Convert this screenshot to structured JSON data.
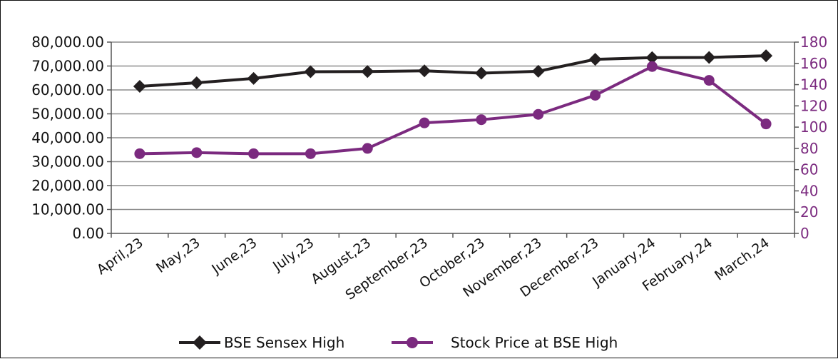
{
  "chart_data": {
    "type": "line",
    "title": "",
    "xlabel": "",
    "ylabel": "",
    "y2label": "",
    "categories": [
      "April,23",
      "May,23",
      "June,23",
      "July,23",
      "August,23",
      "September,23",
      "October,23",
      "November,23",
      "December,23",
      "January,24",
      "February,24",
      "March,24"
    ],
    "ylim": [
      0,
      80000
    ],
    "y_ticks": [
      "0.00",
      "10,000.00",
      "20,000.00",
      "30,000.00",
      "40,000.00",
      "50,000.00",
      "60,000.00",
      "70,000.00",
      "80,000.00"
    ],
    "y2lim": [
      0,
      180
    ],
    "y2_ticks": [
      "0",
      "20",
      "40",
      "60",
      "80",
      "100",
      "120",
      "140",
      "160",
      "180"
    ],
    "grid": true,
    "legend_placement": "bottom",
    "series": [
      {
        "name": "BSE Sensex High",
        "axis": "left",
        "color": "#231f20",
        "marker": "diamond",
        "values": [
          61500,
          63000,
          64800,
          67600,
          67700,
          68000,
          67000,
          67800,
          72800,
          73500,
          73600,
          74300
        ]
      },
      {
        "name": "Stock Price at BSE High",
        "axis": "right",
        "color": "#7b2a7f",
        "marker": "circle",
        "values": [
          75,
          76,
          75,
          75,
          80,
          104,
          107,
          112,
          130,
          157,
          144,
          103
        ]
      }
    ]
  }
}
